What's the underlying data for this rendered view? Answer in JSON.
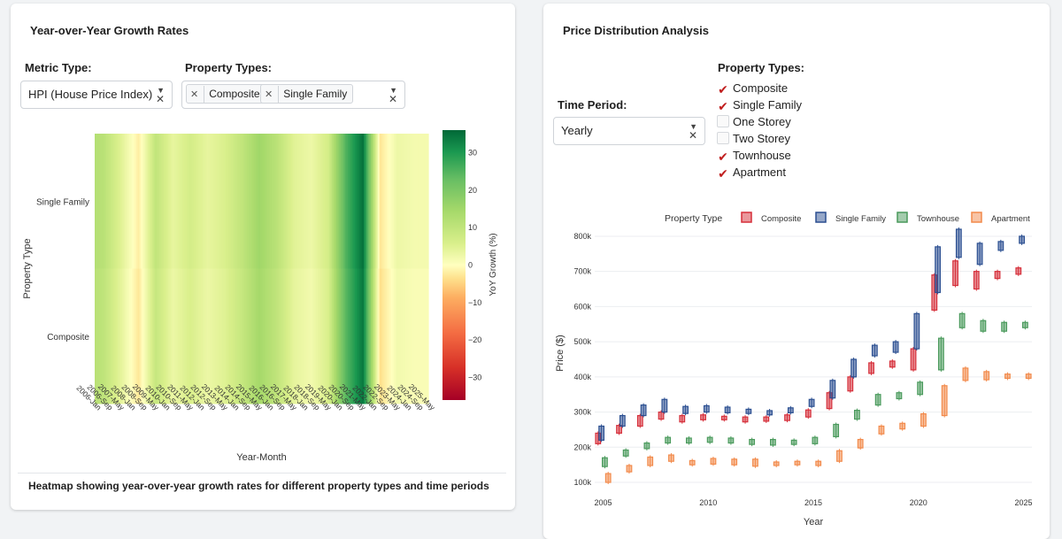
{
  "left": {
    "title": "Year-over-Year Growth Rates",
    "metric_label": "Metric Type:",
    "metric_value": "HPI (House Price Index)",
    "types_label": "Property Types:",
    "tags": [
      "Composite",
      "Single Family"
    ],
    "caption": "Heatmap showing year-over-year growth rates for different property types and time periods"
  },
  "right": {
    "title": "Price Distribution Analysis",
    "time_label": "Time Period:",
    "time_value": "Yearly",
    "types_label": "Property Types:",
    "options": [
      {
        "label": "Composite",
        "checked": true
      },
      {
        "label": "Single Family",
        "checked": true
      },
      {
        "label": "One Storey",
        "checked": false
      },
      {
        "label": "Two Storey",
        "checked": false
      },
      {
        "label": "Townhouse",
        "checked": true
      },
      {
        "label": "Apartment",
        "checked": true
      }
    ]
  },
  "icons": {
    "check": "check-icon",
    "clear": "clear-x-icon",
    "caret": "caret-down-icon"
  },
  "chart_data": [
    {
      "type": "heatmap",
      "title": "",
      "xlabel": "Year-Month",
      "ylabel": "Property Type",
      "colorbar_label": "YoY Growth (%)",
      "colorbar_ticks": [
        30,
        20,
        10,
        0,
        -10,
        -20,
        -30
      ],
      "zmin": -36,
      "zmax": 36,
      "rows": [
        "Single Family",
        "Composite"
      ],
      "x_tick_labels": [
        "2006-Jan",
        "2006-Sep",
        "2007-May",
        "2008-Jan",
        "2008-Sep",
        "2009-May",
        "2010-Jan",
        "2010-Sep",
        "2011-May",
        "2012-Jan",
        "2012-Sep",
        "2013-May",
        "2014-Jan",
        "2014-Sep",
        "2015-May",
        "2016-Jan",
        "2016-Sep",
        "2017-May",
        "2018-Jan",
        "2018-Sep",
        "2019-May",
        "2020-Jan",
        "2020-Sep",
        "2021-May",
        "2022-Jan",
        "2022-Sep",
        "2023-May",
        "2024-Jan",
        "2024-Sep",
        "2025-May"
      ],
      "annual_growth": [
        {
          "year": 2006,
          "value": 12
        },
        {
          "year": 2007,
          "value": 10
        },
        {
          "year": 2008,
          "value": 4
        },
        {
          "year": 2009,
          "value": -3
        },
        {
          "year": 2010,
          "value": 9
        },
        {
          "year": 2011,
          "value": 3
        },
        {
          "year": 2012,
          "value": 6
        },
        {
          "year": 2013,
          "value": 3
        },
        {
          "year": 2014,
          "value": 5
        },
        {
          "year": 2015,
          "value": 9
        },
        {
          "year": 2016,
          "value": 14
        },
        {
          "year": 2017,
          "value": 10
        },
        {
          "year": 2018,
          "value": 4
        },
        {
          "year": 2019,
          "value": 2
        },
        {
          "year": 2020,
          "value": 6
        },
        {
          "year": 2021,
          "value": 24
        },
        {
          "year": 2022,
          "value": 34
        },
        {
          "year": 2023,
          "value": -4
        },
        {
          "year": 2024,
          "value": 2
        },
        {
          "year": 2025,
          "value": 1
        }
      ]
    },
    {
      "type": "box",
      "title": "",
      "xlabel": "Year",
      "ylabel": "Price ($)",
      "legend_title": "Property Type",
      "x_ticks": [
        2005,
        2010,
        2015,
        2020,
        2025
      ],
      "y_ticks": [
        "100k",
        "200k",
        "300k",
        "400k",
        "500k",
        "600k",
        "700k",
        "800k"
      ],
      "y_range": [
        90000,
        820000
      ],
      "x_range": [
        2004.6,
        2025.4
      ],
      "series": [
        {
          "name": "Composite",
          "color": "#d62f3a",
          "boxes": [
            [
              2005,
              210000,
              240000
            ],
            [
              2006,
              240000,
              262000
            ],
            [
              2007,
              260000,
              290000
            ],
            [
              2008,
              280000,
              300000
            ],
            [
              2009,
              272000,
              290000
            ],
            [
              2010,
              278000,
              292000
            ],
            [
              2011,
              278000,
              288000
            ],
            [
              2012,
              272000,
              286000
            ],
            [
              2013,
              274000,
              286000
            ],
            [
              2014,
              276000,
              292000
            ],
            [
              2015,
              286000,
              306000
            ],
            [
              2016,
              310000,
              355000
            ],
            [
              2017,
              360000,
              400000
            ],
            [
              2018,
              410000,
              440000
            ],
            [
              2019,
              428000,
              445000
            ],
            [
              2020,
              420000,
              480000
            ],
            [
              2021,
              590000,
              690000
            ],
            [
              2022,
              660000,
              730000
            ],
            [
              2023,
              650000,
              700000
            ],
            [
              2024,
              680000,
              700000
            ],
            [
              2025,
              692000,
              710000
            ]
          ]
        },
        {
          "name": "Single Family",
          "color": "#2b4f91",
          "boxes": [
            [
              2005,
              220000,
              260000
            ],
            [
              2006,
              260000,
              290000
            ],
            [
              2007,
              290000,
              320000
            ],
            [
              2008,
              300000,
              336000
            ],
            [
              2009,
              296000,
              316000
            ],
            [
              2010,
              300000,
              318000
            ],
            [
              2011,
              298000,
              314000
            ],
            [
              2012,
              296000,
              308000
            ],
            [
              2013,
              292000,
              304000
            ],
            [
              2014,
              298000,
              312000
            ],
            [
              2015,
              316000,
              336000
            ],
            [
              2016,
              340000,
              390000
            ],
            [
              2017,
              400000,
              450000
            ],
            [
              2018,
              460000,
              490000
            ],
            [
              2019,
              470000,
              500000
            ],
            [
              2020,
              480000,
              580000
            ],
            [
              2021,
              640000,
              770000
            ],
            [
              2022,
              740000,
              820000
            ],
            [
              2023,
              720000,
              780000
            ],
            [
              2024,
              760000,
              785000
            ],
            [
              2025,
              780000,
              800000
            ]
          ]
        },
        {
          "name": "Townhouse",
          "color": "#4a9a5c",
          "boxes": [
            [
              2005,
              145000,
              170000
            ],
            [
              2006,
              175000,
              192000
            ],
            [
              2007,
              196000,
              212000
            ],
            [
              2008,
              212000,
              228000
            ],
            [
              2009,
              212000,
              226000
            ],
            [
              2010,
              214000,
              228000
            ],
            [
              2011,
              212000,
              226000
            ],
            [
              2012,
              208000,
              222000
            ],
            [
              2013,
              206000,
              222000
            ],
            [
              2014,
              208000,
              220000
            ],
            [
              2015,
              210000,
              228000
            ],
            [
              2016,
              230000,
              265000
            ],
            [
              2017,
              280000,
              305000
            ],
            [
              2018,
              320000,
              350000
            ],
            [
              2019,
              338000,
              355000
            ],
            [
              2020,
              350000,
              385000
            ],
            [
              2021,
              420000,
              510000
            ],
            [
              2022,
              540000,
              580000
            ],
            [
              2023,
              530000,
              560000
            ],
            [
              2024,
              530000,
              555000
            ],
            [
              2025,
              540000,
              555000
            ]
          ]
        },
        {
          "name": "Apartment",
          "color": "#f28a4b",
          "boxes": [
            [
              2005,
              100000,
              125000
            ],
            [
              2006,
              130000,
              148000
            ],
            [
              2007,
              148000,
              172000
            ],
            [
              2008,
              160000,
              178000
            ],
            [
              2009,
              150000,
              162000
            ],
            [
              2010,
              152000,
              168000
            ],
            [
              2011,
              150000,
              166000
            ],
            [
              2012,
              146000,
              166000
            ],
            [
              2013,
              148000,
              158000
            ],
            [
              2014,
              150000,
              160000
            ],
            [
              2015,
              148000,
              160000
            ],
            [
              2016,
              160000,
              190000
            ],
            [
              2017,
              198000,
              222000
            ],
            [
              2018,
              238000,
              260000
            ],
            [
              2019,
              252000,
              268000
            ],
            [
              2020,
              260000,
              295000
            ],
            [
              2021,
              290000,
              375000
            ],
            [
              2022,
              390000,
              425000
            ],
            [
              2023,
              392000,
              415000
            ],
            [
              2024,
              396000,
              408000
            ],
            [
              2025,
              396000,
              408000
            ]
          ]
        }
      ]
    }
  ]
}
